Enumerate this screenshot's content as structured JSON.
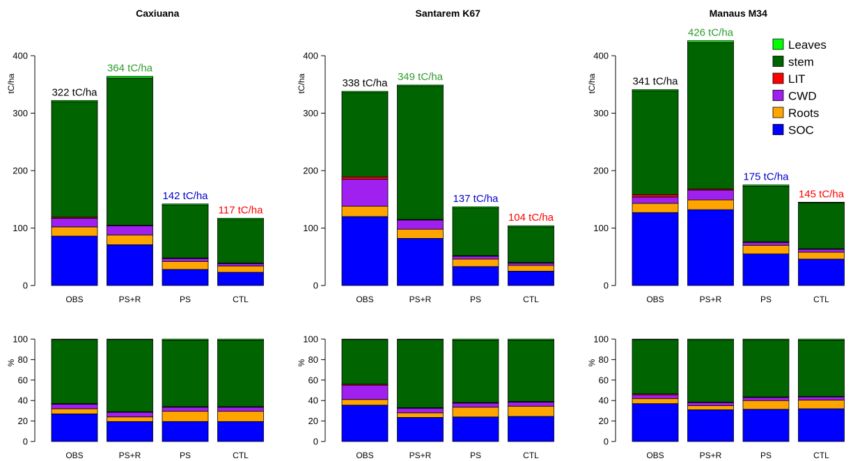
{
  "layers": [
    {
      "key": "SOC",
      "label": "SOC",
      "color": "#0000FF"
    },
    {
      "key": "Roots",
      "label": "Roots",
      "color": "#FFA500"
    },
    {
      "key": "CWD",
      "label": "CWD",
      "color": "#A020F0"
    },
    {
      "key": "LIT",
      "label": "LIT",
      "color": "#FF0000"
    },
    {
      "key": "stem",
      "label": "stem",
      "color": "#006400"
    },
    {
      "key": "Leaves",
      "label": "Leaves",
      "color": "#00FF00"
    }
  ],
  "legend": {
    "placement": "top-right",
    "order": [
      "Leaves",
      "stem",
      "LIT",
      "CWD",
      "Roots",
      "SOC"
    ],
    "labels": [
      "Leaves",
      "stem",
      "LIT",
      "CWD",
      "Roots",
      "SOC"
    ]
  },
  "total_colors": {
    "OBS": "#000000",
    "PS+R": "#2E9B2E",
    "PS": "#0000CC",
    "CTL": "#FF0000"
  },
  "chart_data": [
    {
      "type": "bar",
      "site": "Caxiuana",
      "title": "Caxiuana",
      "ylabel": "tC/ha",
      "ylim": [
        0,
        400
      ],
      "yticks": [
        "0",
        "100",
        "200",
        "300",
        "400"
      ],
      "categories": [
        "OBS",
        "PS+R",
        "PS",
        "CTL"
      ],
      "total_labels": [
        "322 tC/ha",
        "364 tC/ha",
        "142 tC/ha",
        "117 tC/ha"
      ],
      "series": [
        {
          "name": "SOC",
          "values": [
            86,
            71,
            28,
            23
          ]
        },
        {
          "name": "Roots",
          "values": [
            16,
            17,
            14,
            11
          ]
        },
        {
          "name": "CWD",
          "values": [
            15,
            16,
            5,
            4
          ]
        },
        {
          "name": "LIT",
          "values": [
            2,
            1,
            1,
            1
          ]
        },
        {
          "name": "stem",
          "values": [
            201,
            256,
            92,
            76
          ]
        },
        {
          "name": "Leaves",
          "values": [
            2,
            3,
            2,
            2
          ]
        }
      ]
    },
    {
      "type": "bar",
      "site": "Santarem K67",
      "title": "Santarem K67",
      "ylabel": "tC/ha",
      "ylim": [
        0,
        400
      ],
      "yticks": [
        "0",
        "100",
        "200",
        "300",
        "400"
      ],
      "categories": [
        "OBS",
        "PS+R",
        "PS",
        "CTL"
      ],
      "total_labels": [
        "338 tC/ha",
        "349 tC/ha",
        "137 tC/ha",
        "104 tC/ha"
      ],
      "series": [
        {
          "name": "SOC",
          "values": [
            120,
            82,
            33,
            25
          ]
        },
        {
          "name": "Roots",
          "values": [
            18,
            16,
            13,
            10
          ]
        },
        {
          "name": "CWD",
          "values": [
            47,
            16,
            5,
            4
          ]
        },
        {
          "name": "LIT",
          "values": [
            4,
            1,
            1,
            1
          ]
        },
        {
          "name": "stem",
          "values": [
            147,
            232,
            83,
            62
          ]
        },
        {
          "name": "Leaves",
          "values": [
            2,
            2,
            2,
            2
          ]
        }
      ]
    },
    {
      "type": "bar",
      "site": "Manaus M34",
      "title": "Manaus M34",
      "ylabel": "tC/ha",
      "ylim": [
        0,
        400
      ],
      "yticks": [
        "0",
        "100",
        "200",
        "300",
        "400"
      ],
      "categories": [
        "OBS",
        "PS+R",
        "PS",
        "CTL"
      ],
      "total_labels": [
        "341 tC/ha",
        "426 tC/ha",
        "175 tC/ha",
        "145 tC/ha"
      ],
      "series": [
        {
          "name": "SOC",
          "values": [
            127,
            132,
            55,
            46
          ]
        },
        {
          "name": "Roots",
          "values": [
            16,
            17,
            15,
            12
          ]
        },
        {
          "name": "CWD",
          "values": [
            11,
            17,
            5,
            5
          ]
        },
        {
          "name": "LIT",
          "values": [
            4,
            2,
            1,
            1
          ]
        },
        {
          "name": "stem",
          "values": [
            181,
            255,
            97,
            80
          ]
        },
        {
          "name": "Leaves",
          "values": [
            2,
            3,
            2,
            1
          ]
        }
      ]
    },
    {
      "type": "bar",
      "site": "Caxiuana",
      "title": "",
      "ylabel": "%",
      "ylim": [
        0,
        100
      ],
      "yticks": [
        "0",
        "20",
        "40",
        "60",
        "80",
        "100"
      ],
      "categories": [
        "OBS",
        "PS+R",
        "PS",
        "CTL"
      ],
      "series": [
        {
          "name": "SOC",
          "values": [
            27,
            19.5,
            19.5,
            19.5
          ]
        },
        {
          "name": "Roots",
          "values": [
            5,
            4.5,
            10,
            10
          ]
        },
        {
          "name": "CWD",
          "values": [
            4.5,
            4.5,
            4,
            4
          ]
        },
        {
          "name": "LIT",
          "values": [
            0.5,
            0.5,
            0.5,
            0.5
          ]
        },
        {
          "name": "stem",
          "values": [
            62.5,
            70.5,
            65,
            65
          ]
        },
        {
          "name": "Leaves",
          "values": [
            0.5,
            0.5,
            1,
            1
          ]
        }
      ]
    },
    {
      "type": "bar",
      "site": "Santarem K67",
      "title": "",
      "ylabel": "%",
      "ylim": [
        0,
        100
      ],
      "yticks": [
        "0",
        "20",
        "40",
        "60",
        "80",
        "100"
      ],
      "categories": [
        "OBS",
        "PS+R",
        "PS",
        "CTL"
      ],
      "series": [
        {
          "name": "SOC",
          "values": [
            35.5,
            23.5,
            24,
            24.5
          ]
        },
        {
          "name": "Roots",
          "values": [
            5.5,
            4.5,
            9.5,
            10
          ]
        },
        {
          "name": "CWD",
          "values": [
            14,
            4.5,
            4,
            4
          ]
        },
        {
          "name": "LIT",
          "values": [
            1,
            0.5,
            0.5,
            0.5
          ]
        },
        {
          "name": "stem",
          "values": [
            43.5,
            66.5,
            61,
            60
          ]
        },
        {
          "name": "Leaves",
          "values": [
            0.5,
            0.5,
            1,
            1
          ]
        }
      ]
    },
    {
      "type": "bar",
      "site": "Manaus M34",
      "title": "",
      "ylabel": "%",
      "ylim": [
        0,
        100
      ],
      "yticks": [
        "0",
        "20",
        "40",
        "60",
        "80",
        "100"
      ],
      "categories": [
        "OBS",
        "PS+R",
        "PS",
        "CTL"
      ],
      "series": [
        {
          "name": "SOC",
          "values": [
            37,
            31,
            31.5,
            32
          ]
        },
        {
          "name": "Roots",
          "values": [
            5,
            4,
            8.5,
            8.5
          ]
        },
        {
          "name": "CWD",
          "values": [
            3.5,
            3,
            3,
            3
          ]
        },
        {
          "name": "LIT",
          "values": [
            1,
            0.5,
            0.5,
            0.5
          ]
        },
        {
          "name": "stem",
          "values": [
            53,
            60.8,
            55.8,
            55
          ]
        },
        {
          "name": "Leaves",
          "values": [
            0.5,
            0.7,
            0.7,
            1
          ]
        }
      ]
    }
  ]
}
